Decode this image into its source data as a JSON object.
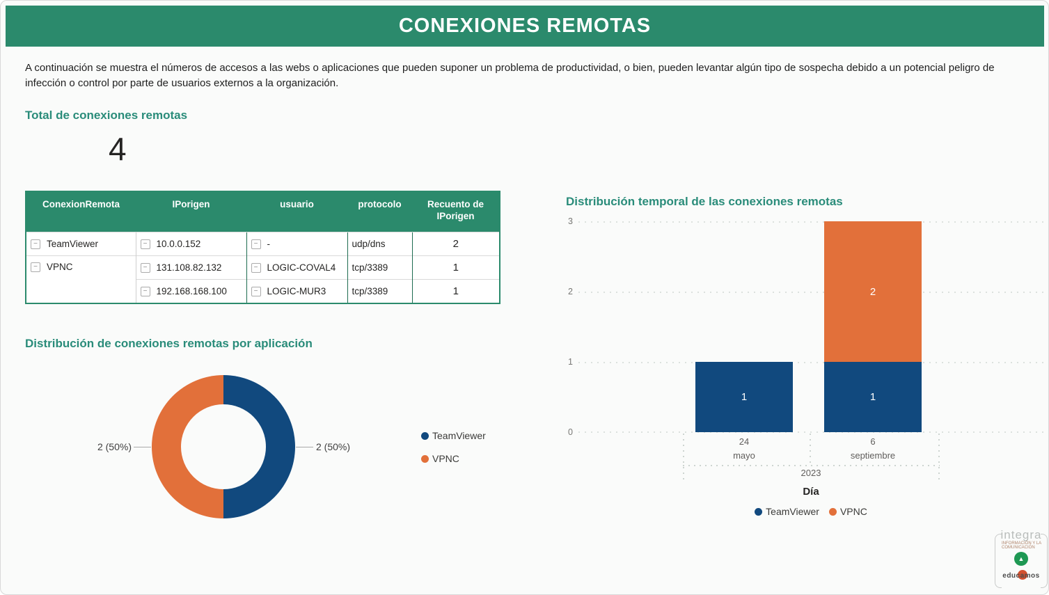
{
  "banner": {
    "title": "CONEXIONES REMOTAS"
  },
  "intro": {
    "text": "A continuación se muestra el números de accesos a las webs o aplicaciones que pueden suponer un problema de productividad, o bien, pueden levantar algún tipo de sospecha debido a un potencial peligro de infección o control por parte de usuarios externos a la organización."
  },
  "kpi": {
    "title": "Total de conexiones remotas",
    "value": "4"
  },
  "matrix": {
    "collapse_glyph": "−",
    "columns": [
      "ConexionRemota",
      "IPorigen",
      "usuario",
      "protocolo",
      "Recuento de IPorigen"
    ],
    "rows": [
      [
        "TeamViewer",
        "10.0.0.152",
        "-",
        "udp/dns",
        "2"
      ],
      [
        "VPNC",
        "131.108.82.132",
        "LOGIC-COVAL4",
        "tcp/3389",
        "1"
      ],
      [
        "",
        "192.168.168.100",
        "LOGIC-MUR3",
        "tcp/3389",
        "1"
      ]
    ]
  },
  "chart_data": [
    {
      "type": "pie",
      "subtype": "donut",
      "title": "Distribución de conexiones remotas por aplicación",
      "categories": [
        "TeamViewer",
        "VPNC"
      ],
      "values": [
        2,
        2
      ],
      "value_labels": [
        "2 (50%)",
        "2 (50%)"
      ],
      "colors": [
        "#11497E",
        "#E2703A"
      ],
      "legend_position": "right"
    },
    {
      "type": "bar",
      "stacked": true,
      "title": "Distribución temporal de las conexiones remotas",
      "xlabel": "Día",
      "x_categories": [
        {
          "day": "24",
          "month": "mayo"
        },
        {
          "day": "6",
          "month": "septiembre"
        }
      ],
      "year": "2023",
      "series": [
        {
          "name": "TeamViewer",
          "color": "#11497E",
          "values": [
            1,
            1
          ]
        },
        {
          "name": "VPNC",
          "color": "#E2703A",
          "values": [
            0,
            2
          ]
        }
      ],
      "ylim": [
        0,
        3
      ],
      "yticks": [
        "0",
        "1",
        "2",
        "3"
      ],
      "grid": "dotted-horizontal",
      "legend_position": "bottom"
    },
    {
      "type": "table",
      "columns": [
        "ConexionRemota",
        "IPorigen",
        "usuario",
        "protocolo",
        "Recuento de IPorigen"
      ],
      "rows": [
        [
          "TeamViewer",
          "10.0.0.152",
          "-",
          "udp/dns",
          2
        ],
        [
          "VPNC",
          "131.108.82.132",
          "LOGIC-COVAL4",
          "tcp/3389",
          1
        ],
        [
          "VPNC",
          "192.168.168.100",
          "LOGIC-MUR3",
          "tcp/3389",
          1
        ]
      ]
    }
  ],
  "theme": {
    "banner_green": "#2B8A6C",
    "heading_teal": "#2A8C7A",
    "blue": "#11497E",
    "orange": "#E2703A"
  },
  "logo": {
    "brand": "integra",
    "caption_line1": "INFORMACIÓN Y LA",
    "caption_line2": "COMUNICACIÓN",
    "emblem_glyph": "▲",
    "product": "educamos"
  }
}
